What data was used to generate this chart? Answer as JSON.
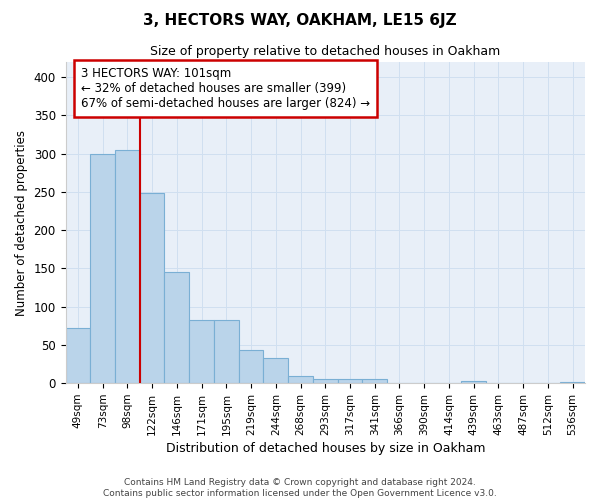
{
  "title": "3, HECTORS WAY, OAKHAM, LE15 6JZ",
  "subtitle": "Size of property relative to detached houses in Oakham",
  "xlabel": "Distribution of detached houses by size in Oakham",
  "ylabel": "Number of detached properties",
  "bar_labels": [
    "49sqm",
    "73sqm",
    "98sqm",
    "122sqm",
    "146sqm",
    "171sqm",
    "195sqm",
    "219sqm",
    "244sqm",
    "268sqm",
    "293sqm",
    "317sqm",
    "341sqm",
    "366sqm",
    "390sqm",
    "414sqm",
    "439sqm",
    "463sqm",
    "487sqm",
    "512sqm",
    "536sqm"
  ],
  "bar_values": [
    72,
    299,
    305,
    249,
    145,
    82,
    82,
    44,
    33,
    10,
    5,
    5,
    6,
    0,
    0,
    0,
    3,
    0,
    0,
    0,
    2
  ],
  "bar_color": "#bad4ea",
  "bar_edge_color": "#7aafd4",
  "grid_color": "#d0dff0",
  "background_color": "#e8eff8",
  "vline_color": "#cc0000",
  "vline_x": 2.5,
  "annotation_line1": "3 HECTORS WAY: 101sqm",
  "annotation_line2": "← 32% of detached houses are smaller (399)",
  "annotation_line3": "67% of semi-detached houses are larger (824) →",
  "annotation_box_color": "#ffffff",
  "annotation_box_edge": "#cc0000",
  "ylim": [
    0,
    420
  ],
  "yticks": [
    0,
    50,
    100,
    150,
    200,
    250,
    300,
    350,
    400
  ],
  "footer_line1": "Contains HM Land Registry data © Crown copyright and database right 2024.",
  "footer_line2": "Contains public sector information licensed under the Open Government Licence v3.0."
}
